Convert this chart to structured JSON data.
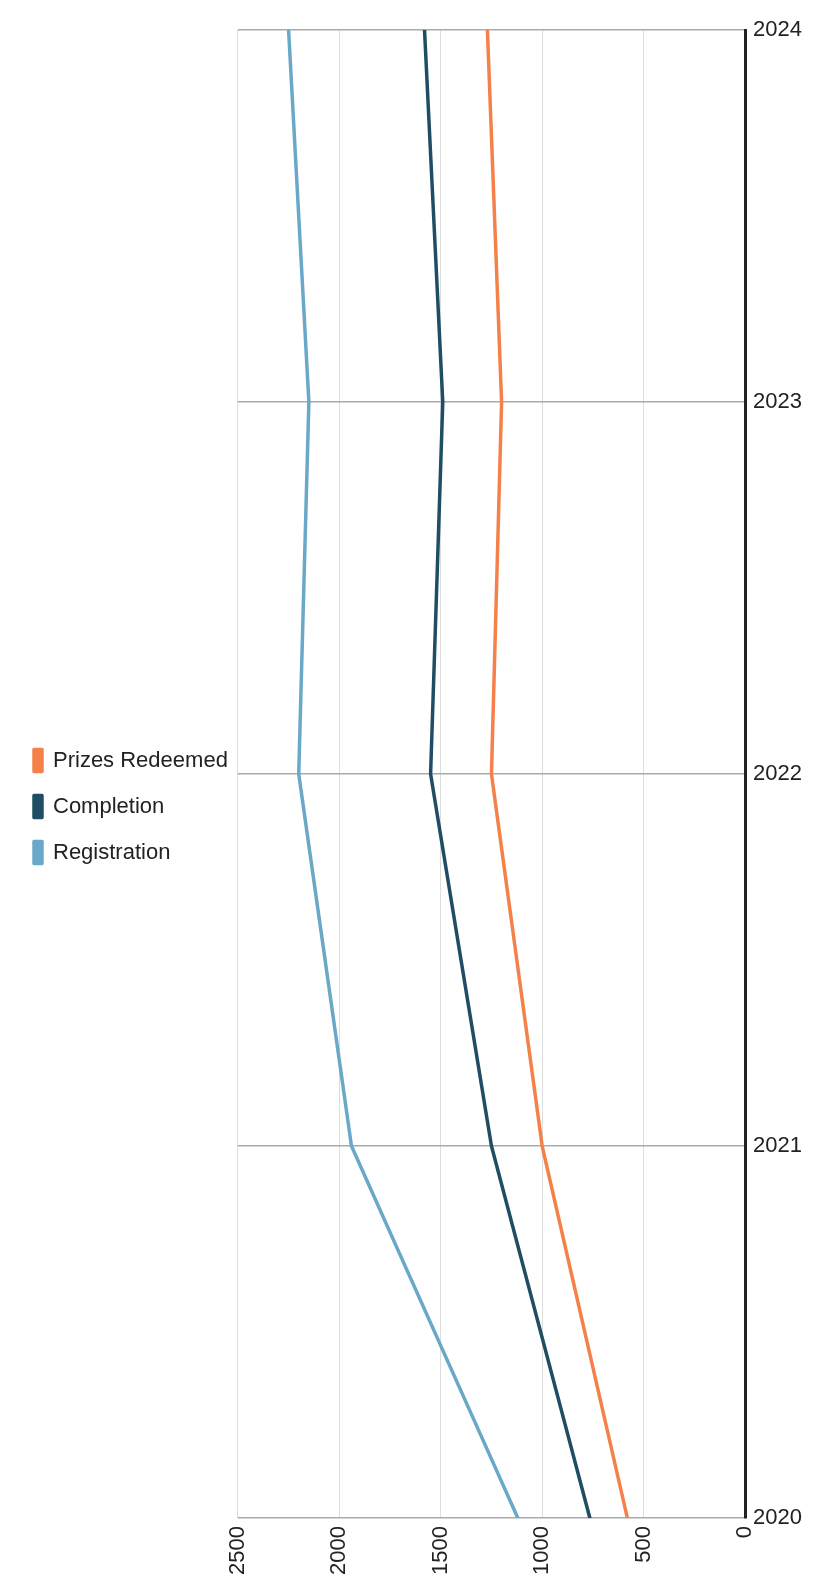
{
  "chart_data": {
    "type": "line",
    "orientation": "horizontal",
    "x": [
      2020,
      2021,
      2022,
      2023,
      2024
    ],
    "series": [
      {
        "name": "Registration",
        "color": "#6aa8c8",
        "values": [
          1120,
          1940,
          2200,
          2150,
          2250
        ]
      },
      {
        "name": "Completion",
        "color": "#1f4e64",
        "values": [
          765,
          1250,
          1550,
          1490,
          1580
        ]
      },
      {
        "name": "Prizes Redeemed",
        "color": "#f5814a",
        "values": [
          580,
          1000,
          1250,
          1200,
          1270
        ]
      }
    ],
    "xlim": [
      2500,
      0
    ],
    "xticks": [
      0,
      500,
      1000,
      1500,
      2000,
      2500
    ],
    "ylim": [
      2020,
      2024
    ],
    "yticks": [
      2020,
      2021,
      2022,
      2023,
      2024
    ],
    "grid": true,
    "legend": "left",
    "marker": "none",
    "line_style": "solid"
  }
}
